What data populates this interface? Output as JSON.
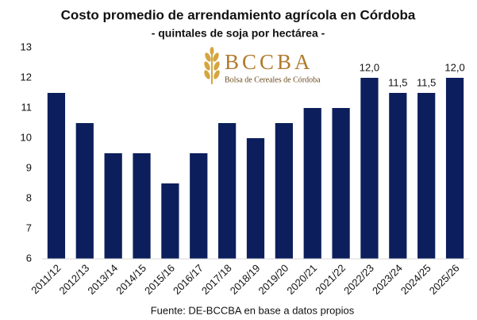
{
  "chart_data": {
    "type": "bar",
    "title": "Costo promedio de arrendamiento agrícola en Córdoba",
    "subtitle": "- quintales de soja por hectárea -",
    "source": "Fuente: DE-BCCBA en base a datos propios",
    "logo": {
      "name": "BCCBA",
      "tagline": "Bolsa de Cereales de Córdoba"
    },
    "categories": [
      "2011/12",
      "2012/13",
      "2013/14",
      "2014/15",
      "2015/16",
      "2016/17",
      "2017/18",
      "2018/19",
      "2019/20",
      "2020/21",
      "2021/22",
      "2022/23",
      "2023/24",
      "2024/25",
      "2025/26"
    ],
    "values": [
      11.5,
      10.5,
      9.5,
      9.5,
      8.5,
      9.5,
      10.5,
      10,
      10.5,
      11,
      11,
      12,
      11.5,
      11.5,
      12
    ],
    "value_labels": [
      null,
      null,
      null,
      null,
      null,
      null,
      null,
      null,
      null,
      null,
      null,
      "12,0",
      "11,5",
      "11,5",
      "12,0"
    ],
    "color": "#0c1f5c",
    "ylim": [
      6,
      13
    ],
    "yticks": [
      6,
      7,
      8,
      9,
      10,
      11,
      12,
      13
    ],
    "grid": false
  }
}
